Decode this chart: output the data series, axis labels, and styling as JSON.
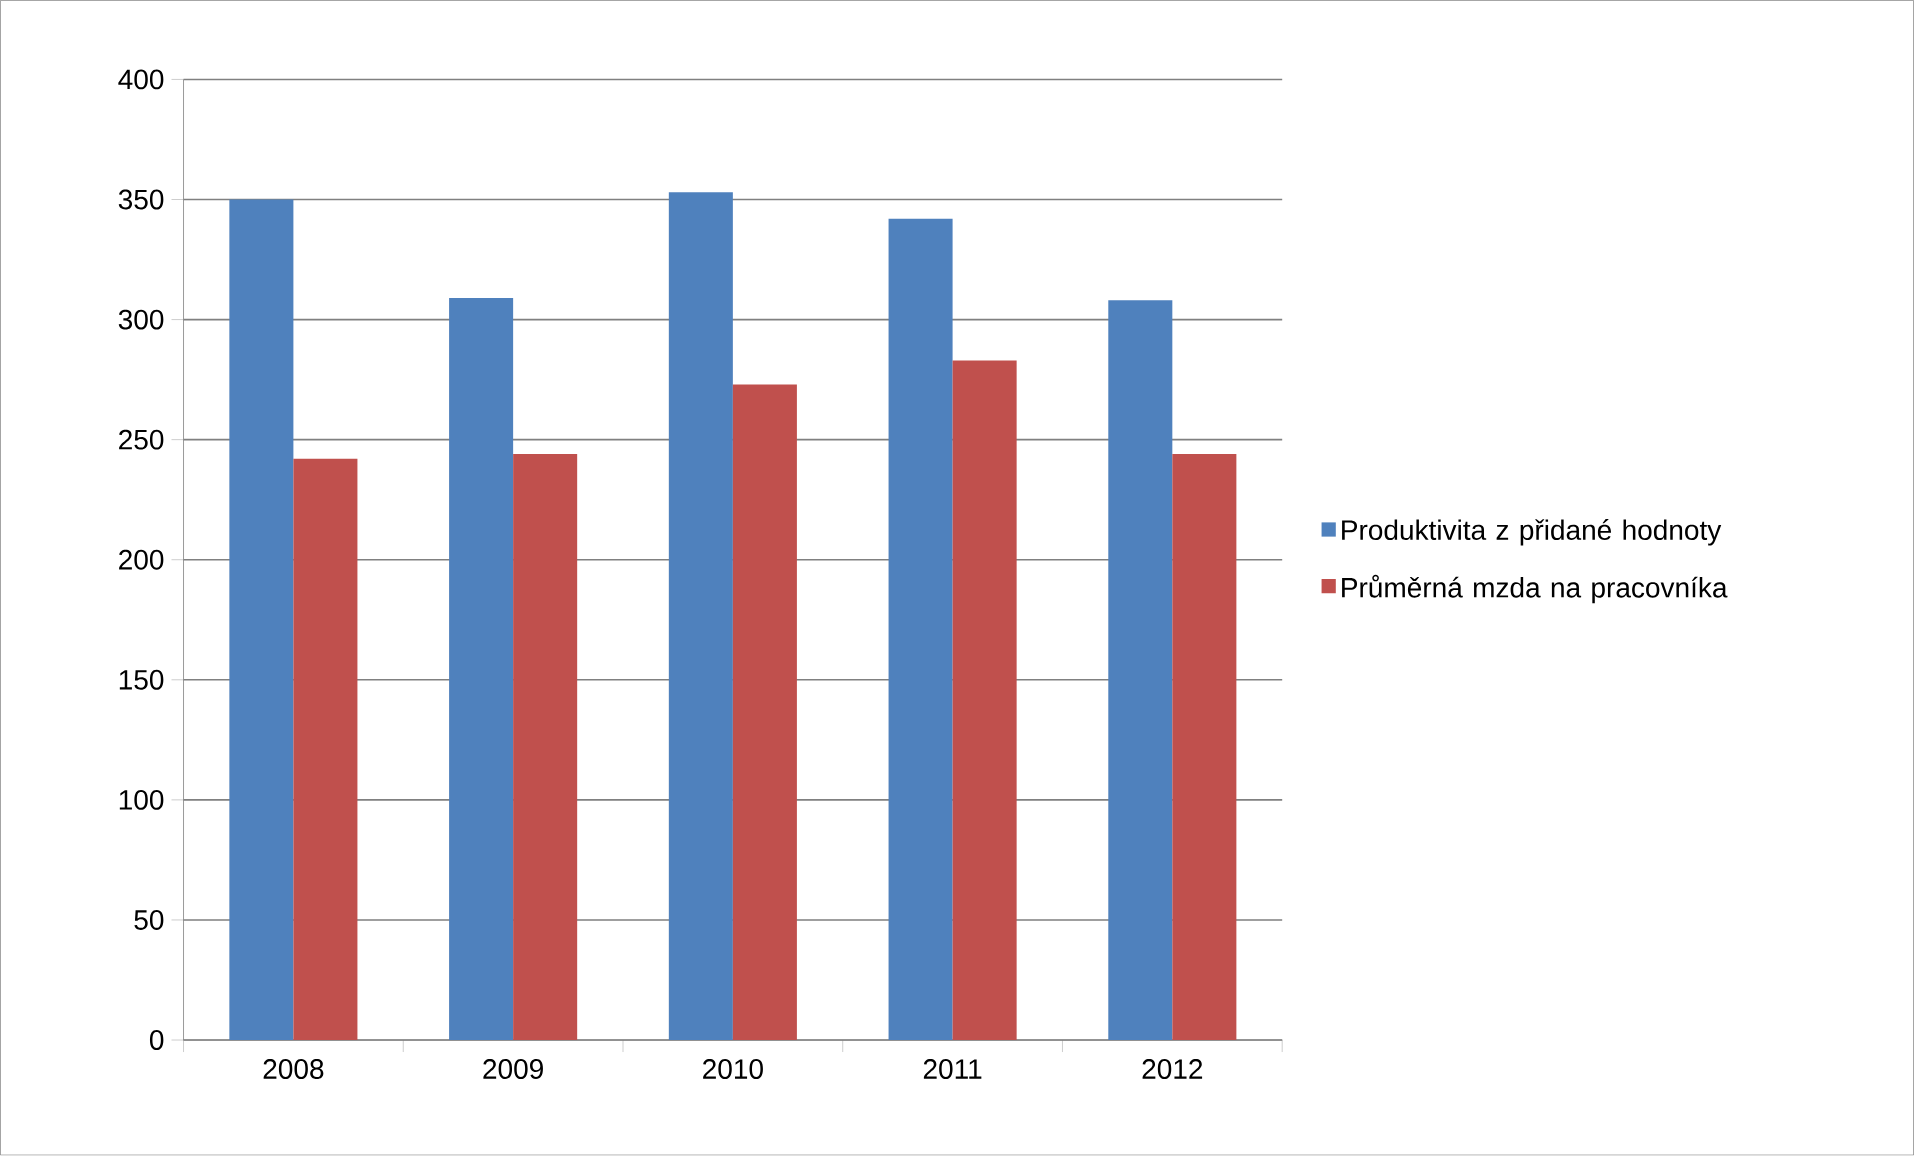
{
  "chart_data": {
    "type": "bar",
    "categories": [
      "2008",
      "2009",
      "2010",
      "2011",
      "2012"
    ],
    "series": [
      {
        "name": "Produktivita z přidané hodnoty",
        "color": "#4f81bd",
        "values": [
          350,
          309,
          353,
          342,
          308
        ]
      },
      {
        "name": "Průměrná mzda na pracovníka",
        "color": "#c0504d",
        "values": [
          242,
          244,
          273,
          283,
          244
        ]
      }
    ],
    "ylim": [
      0,
      400
    ],
    "yticks": [
      0,
      50,
      100,
      150,
      200,
      250,
      300,
      350,
      400
    ],
    "grid": "y",
    "legend": "right"
  }
}
